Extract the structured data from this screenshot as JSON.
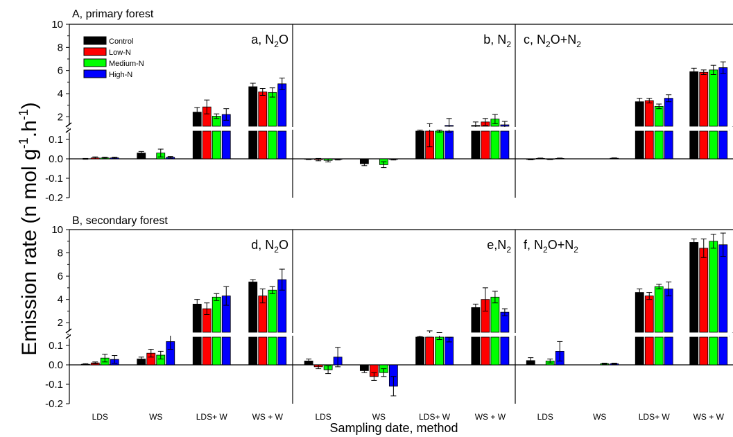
{
  "figure": {
    "ylabel": "Emission rate (n mol g",
    "ylabel_sup1": "-1",
    "ylabel_mid": ".h",
    "ylabel_sup2": "-1",
    "ylabel_end": ")",
    "xlabel": "Sampling date, method"
  },
  "legend": {
    "entries": [
      {
        "label": "Control",
        "color": "#000000"
      },
      {
        "label": "Low-N",
        "color": "#ff0000"
      },
      {
        "label": "Medium-N",
        "color": "#00ff00"
      },
      {
        "label": "High-N",
        "color": "#0000ff"
      }
    ]
  },
  "rows": [
    {
      "title": "A, primary forest"
    },
    {
      "title": "B, secondary forest"
    }
  ],
  "chart_data": {
    "type": "bar",
    "categories": [
      "LDS",
      "WS",
      "LDS+ W",
      "WS + W"
    ],
    "series_names": [
      "Control",
      "Low-N",
      "Medium-N",
      "High-N"
    ],
    "colors": [
      "#000000",
      "#ff0000",
      "#00ff00",
      "#0000ff"
    ],
    "axis": {
      "lower_range": [
        -0.2,
        0.1
      ],
      "lower_ticks": [
        "-0.2",
        "-0.1",
        "0.0",
        "0.1"
      ],
      "upper_range": [
        0,
        10
      ],
      "upper_ticks": [
        "2",
        "4",
        "6",
        "8",
        "10"
      ],
      "broken_axis": true
    },
    "panels": [
      {
        "label": "a, N",
        "label_sub": "2",
        "label_end": "O",
        "row": 0,
        "col": 0,
        "values": [
          [
            0.0,
            0.03,
            2.4,
            4.6
          ],
          [
            0.005,
            0.0,
            2.85,
            4.15
          ],
          [
            0.005,
            0.03,
            2.05,
            4.1
          ],
          [
            0.005,
            0.008,
            2.2,
            4.85
          ]
        ],
        "errors": [
          [
            0.002,
            0.008,
            0.4,
            0.3
          ],
          [
            0.005,
            0.0,
            0.6,
            0.3
          ],
          [
            0.004,
            0.02,
            0.2,
            0.4
          ],
          [
            0.004,
            0.004,
            0.5,
            0.5
          ]
        ]
      },
      {
        "label": "b, N",
        "label_sub": "2",
        "label_end": "",
        "row": 0,
        "col": 1,
        "values": [
          [
            -0.002,
            -0.025,
            0.75,
            1.25
          ],
          [
            -0.004,
            0.0,
            0.4,
            1.55
          ],
          [
            -0.008,
            -0.03,
            0.75,
            1.8
          ],
          [
            -0.003,
            -0.003,
            1.25,
            1.3
          ]
        ],
        "errors": [
          [
            0.002,
            0.01,
            0.1,
            0.3
          ],
          [
            0.006,
            0.0,
            1.0,
            0.3
          ],
          [
            0.008,
            0.015,
            0.1,
            0.4
          ],
          [
            0.003,
            0.003,
            0.6,
            0.3
          ]
        ]
      },
      {
        "label": "c, N",
        "label_sub": "2",
        "label_end": "O+N",
        "label_sub2": "2",
        "row": 0,
        "col": 2,
        "values": [
          [
            -0.003,
            0.0,
            3.3,
            5.9
          ],
          [
            0.002,
            0.0,
            3.4,
            5.85
          ],
          [
            -0.002,
            0.0,
            2.9,
            6.05
          ],
          [
            0.002,
            0.003,
            3.6,
            6.25
          ]
        ],
        "errors": [
          [
            0.002,
            0.0,
            0.3,
            0.3
          ],
          [
            0.002,
            0.0,
            0.2,
            0.2
          ],
          [
            0.002,
            0.0,
            0.2,
            0.4
          ],
          [
            0.002,
            0.002,
            0.3,
            0.5
          ]
        ]
      },
      {
        "label": "d, N",
        "label_sub": "2",
        "label_end": "O",
        "row": 1,
        "col": 0,
        "values": [
          [
            0.003,
            0.03,
            3.6,
            5.5
          ],
          [
            0.01,
            0.06,
            3.2,
            4.3
          ],
          [
            0.035,
            0.05,
            4.2,
            4.8
          ],
          [
            0.028,
            0.12,
            4.3,
            5.7
          ]
        ],
        "errors": [
          [
            0.003,
            0.01,
            0.4,
            0.2
          ],
          [
            0.005,
            0.02,
            0.5,
            0.6
          ],
          [
            0.02,
            0.02,
            0.3,
            0.3
          ],
          [
            0.02,
            0.04,
            0.8,
            0.9
          ]
        ]
      },
      {
        "label": "e,N",
        "label_sub": "2",
        "label_end": "",
        "row": 1,
        "col": 1,
        "values": [
          [
            0.02,
            -0.03,
            0.9,
            3.3
          ],
          [
            -0.01,
            -0.06,
            1.1,
            4.0
          ],
          [
            -0.025,
            -0.04,
            0.85,
            4.2
          ],
          [
            0.04,
            -0.11,
            0.55,
            2.9
          ]
        ],
        "errors": [
          [
            0.01,
            0.01,
            0.1,
            0.3
          ],
          [
            0.01,
            0.02,
            0.2,
            1.0
          ],
          [
            0.02,
            0.02,
            0.3,
            0.5
          ],
          [
            0.05,
            0.05,
            0.2,
            0.3
          ]
        ]
      },
      {
        "label": "f, N",
        "label_sub": "2",
        "label_end": "O+N",
        "label_sub2": "2",
        "row": 1,
        "col": 2,
        "values": [
          [
            0.022,
            0.0,
            4.6,
            8.9
          ],
          [
            0.0,
            0.0,
            4.3,
            8.4
          ],
          [
            0.02,
            0.006,
            5.1,
            9.0
          ],
          [
            0.07,
            0.006,
            4.9,
            8.7
          ]
        ],
        "errors": [
          [
            0.015,
            0.0,
            0.3,
            0.3
          ],
          [
            0.0,
            0.0,
            0.3,
            0.8
          ],
          [
            0.01,
            0.003,
            0.2,
            0.6
          ],
          [
            0.05,
            0.003,
            0.6,
            1.0
          ]
        ]
      }
    ]
  }
}
